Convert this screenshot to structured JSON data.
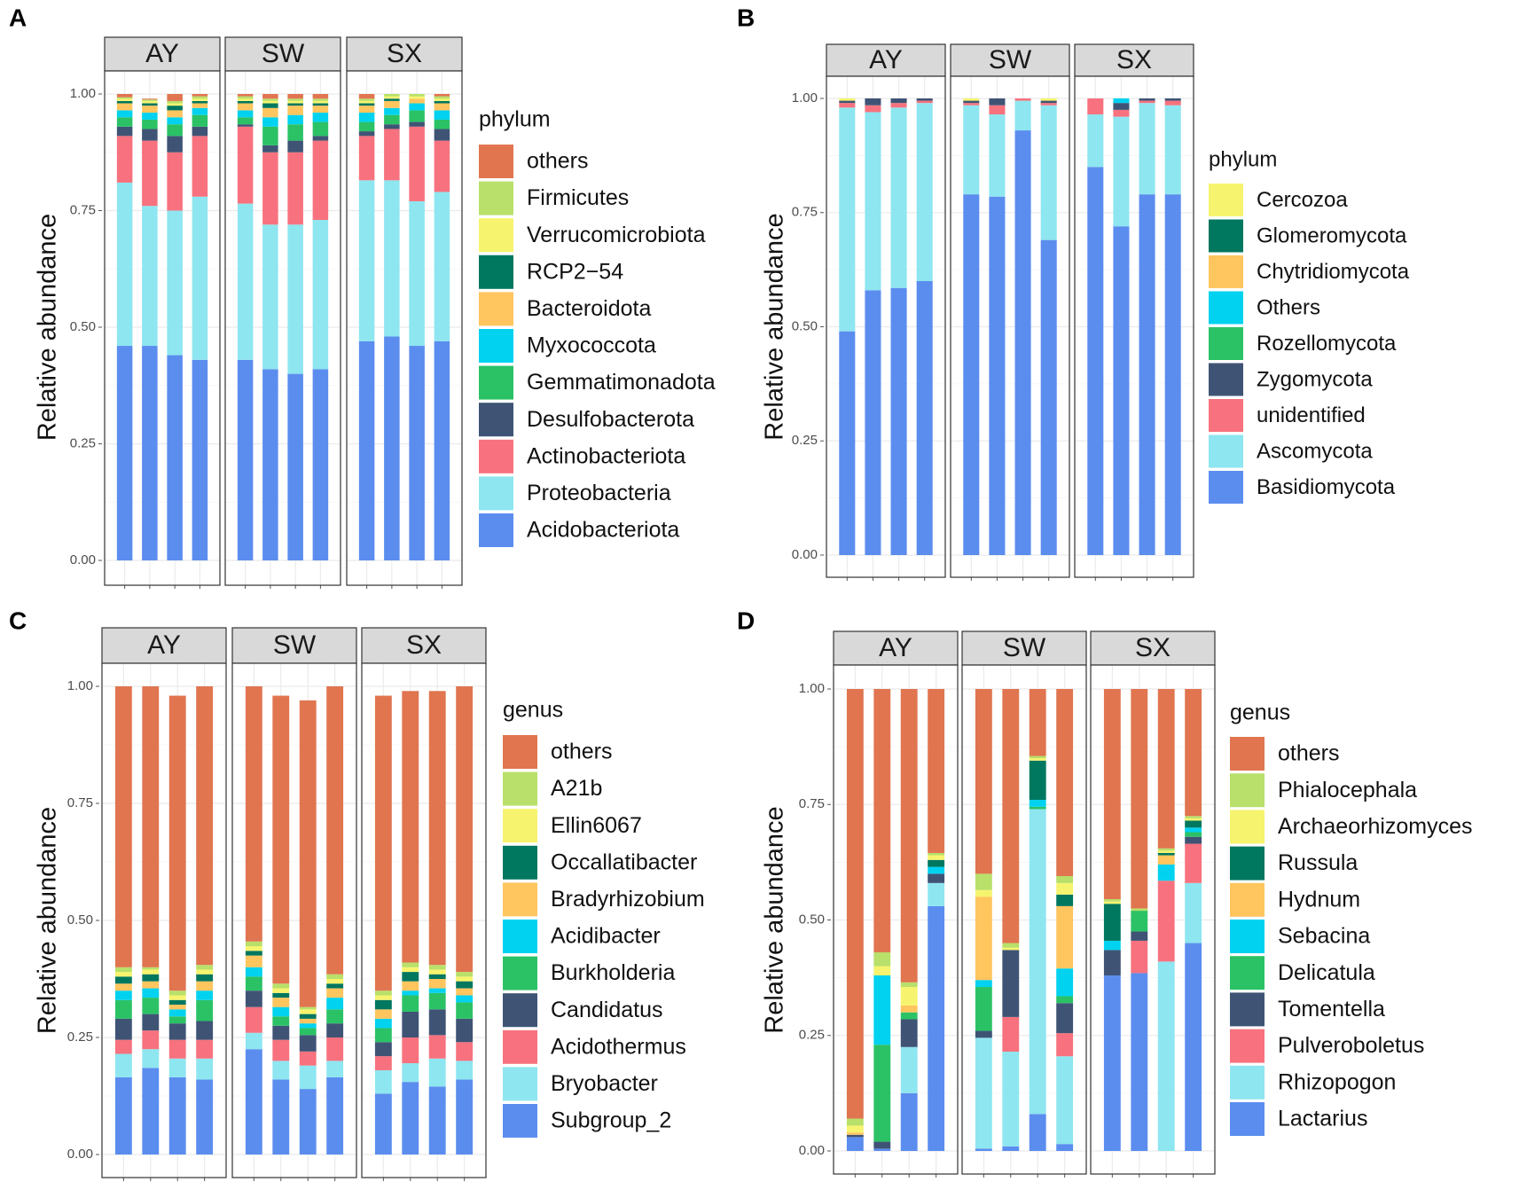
{
  "colors": {
    "others": "#E07550",
    "Firmicutes": "#B8E06A",
    "Verrucomicrobiota": "#F6F46E",
    "RCP2-54": "#00775F",
    "Bacteroidota": "#FFC55E",
    "Myxococcota": "#00D2F0",
    "Gemmatimonadota": "#2BC266",
    "Desulfobacterota": "#3F5475",
    "Actinobacteriota": "#F7727E",
    "Proteobacteria": "#8EE6F0",
    "Acidobacteriota": "#5B8DEF"
  },
  "chart_data": [
    {
      "panel": "A",
      "type": "bar",
      "stacked": true,
      "ylabel": "Relative abundance",
      "yticks": [
        "0.00",
        "0.25",
        "0.50",
        "0.75",
        "1.00"
      ],
      "ylim": [
        0,
        1
      ],
      "facets": [
        "AY",
        "SW",
        "SX"
      ],
      "legend_title": "phylum",
      "legend": [
        "others",
        "Firmicutes",
        "Verrucomicrobiota",
        "RCP2−54",
        "Bacteroidota",
        "Myxococcota",
        "Gemmatimonadota",
        "Desulfobacterota",
        "Actinobacteriota",
        "Proteobacteria",
        "Acidobacteriota"
      ],
      "legend_colors": [
        "#E07550",
        "#B8E06A",
        "#F6F46E",
        "#00775F",
        "#FFC55E",
        "#00D2F0",
        "#2BC266",
        "#3F5475",
        "#F7727E",
        "#8EE6F0",
        "#5B8DEF"
      ],
      "stack_order": [
        "Acidobacteriota",
        "Proteobacteria",
        "Actinobacteriota",
        "Desulfobacterota",
        "Gemmatimonadota",
        "Myxococcota",
        "Bacteroidota",
        "RCP2−54",
        "Verrucomicrobiota",
        "Firmicutes",
        "others"
      ],
      "stack_colors": [
        "#5B8DEF",
        "#8EE6F0",
        "#F7727E",
        "#3F5475",
        "#2BC266",
        "#00D2F0",
        "#FFC55E",
        "#00775F",
        "#F6F46E",
        "#B8E06A",
        "#E07550"
      ],
      "bars": [
        [
          [
            0.46,
            0.35,
            0.1,
            0.02,
            0.02,
            0.015,
            0.015,
            0.005,
            0.005,
            0.003,
            0.007
          ],
          [
            0.46,
            0.3,
            0.14,
            0.025,
            0.02,
            0.015,
            0.015,
            0.005,
            0.005,
            0.003,
            0.002
          ],
          [
            0.44,
            0.31,
            0.125,
            0.035,
            0.025,
            0.015,
            0.015,
            0.01,
            0.005,
            0.005,
            0.015
          ],
          [
            0.43,
            0.35,
            0.13,
            0.02,
            0.025,
            0.015,
            0.01,
            0.005,
            0.005,
            0.005,
            0.005
          ]
        ],
        [
          [
            0.43,
            0.335,
            0.165,
            0.005,
            0.015,
            0.015,
            0.015,
            0.005,
            0.005,
            0.005,
            0.005
          ],
          [
            0.41,
            0.31,
            0.155,
            0.015,
            0.04,
            0.02,
            0.02,
            0.01,
            0.005,
            0.005,
            0.01
          ],
          [
            0.4,
            0.32,
            0.155,
            0.025,
            0.035,
            0.02,
            0.02,
            0.005,
            0.005,
            0.005,
            0.01
          ],
          [
            0.41,
            0.32,
            0.17,
            0.01,
            0.03,
            0.02,
            0.015,
            0.005,
            0.005,
            0.005,
            0.01
          ]
        ],
        [
          [
            0.47,
            0.345,
            0.095,
            0.01,
            0.02,
            0.02,
            0.015,
            0.005,
            0.005,
            0.005,
            0.01
          ],
          [
            0.48,
            0.335,
            0.11,
            0.01,
            0.02,
            0.015,
            0.015,
            0.005,
            0.005,
            0.005,
            0.0
          ],
          [
            0.46,
            0.31,
            0.16,
            0.01,
            0.025,
            0.015,
            0.01,
            0.0,
            0.005,
            0.005,
            0.0
          ],
          [
            0.47,
            0.32,
            0.11,
            0.025,
            0.02,
            0.02,
            0.015,
            0.005,
            0.005,
            0.005,
            0.005
          ]
        ]
      ]
    },
    {
      "panel": "B",
      "type": "bar",
      "stacked": true,
      "ylabel": "Relative abundance",
      "yticks": [
        "0.00",
        "0.25",
        "0.50",
        "0.75",
        "1.00"
      ],
      "ylim": [
        0,
        1
      ],
      "facets": [
        "AY",
        "SW",
        "SX"
      ],
      "legend_title": "phylum",
      "legend": [
        "Cercozoa",
        "Glomeromycota",
        "Chytridiomycota",
        "Others",
        "Rozellomycota",
        "Zygomycota",
        "unidentified",
        "Ascomycota",
        "Basidiomycota"
      ],
      "legend_colors": [
        "#F6F46E",
        "#00775F",
        "#FFC55E",
        "#00D2F0",
        "#2BC266",
        "#3F5475",
        "#F7727E",
        "#8EE6F0",
        "#5B8DEF"
      ],
      "stack_order": [
        "Basidiomycota",
        "Ascomycota",
        "unidentified",
        "Zygomycota",
        "Rozellomycota",
        "Others",
        "Chytridiomycota",
        "Glomeromycota",
        "Cercozoa"
      ],
      "stack_colors": [
        "#5B8DEF",
        "#8EE6F0",
        "#F7727E",
        "#3F5475",
        "#2BC266",
        "#00D2F0",
        "#FFC55E",
        "#00775F",
        "#F6F46E"
      ],
      "bars": [
        [
          [
            0.49,
            0.49,
            0.01,
            0.005,
            0,
            0,
            0,
            0,
            0.005
          ],
          [
            0.58,
            0.39,
            0.015,
            0.015,
            0,
            0,
            0,
            0,
            0
          ],
          [
            0.585,
            0.395,
            0.01,
            0.01,
            0,
            0,
            0,
            0,
            0
          ],
          [
            0.6,
            0.39,
            0.005,
            0.005,
            0,
            0,
            0,
            0,
            0
          ]
        ],
        [
          [
            0.79,
            0.195,
            0.005,
            0.005,
            0,
            0,
            0,
            0,
            0.005
          ],
          [
            0.785,
            0.18,
            0.02,
            0.015,
            0,
            0,
            0,
            0,
            0
          ],
          [
            0.93,
            0.065,
            0.005,
            0.0,
            0,
            0,
            0,
            0,
            0
          ],
          [
            0.69,
            0.295,
            0.005,
            0.005,
            0,
            0,
            0,
            0,
            0.005
          ]
        ],
        [
          [
            0.85,
            0.115,
            0.035,
            0.0,
            0,
            0,
            0,
            0,
            0
          ],
          [
            0.72,
            0.24,
            0.015,
            0.015,
            0,
            0.01,
            0,
            0,
            0
          ],
          [
            0.79,
            0.2,
            0.005,
            0.005,
            0,
            0,
            0,
            0,
            0
          ],
          [
            0.79,
            0.195,
            0.01,
            0.005,
            0,
            0,
            0,
            0,
            0
          ]
        ]
      ]
    },
    {
      "panel": "C",
      "type": "bar",
      "stacked": true,
      "ylabel": "Relative abundance",
      "yticks": [
        "0.00",
        "0.25",
        "0.50",
        "0.75",
        "1.00"
      ],
      "ylim": [
        0,
        1
      ],
      "facets": [
        "AY",
        "SW",
        "SX"
      ],
      "legend_title": "genus",
      "legend": [
        "others",
        "A21b",
        "Ellin6067",
        "Occallatibacter",
        "Bradyrhizobium",
        "Acidibacter",
        "Burkholderia",
        "Candidatus",
        "Acidothermus",
        "Bryobacter",
        "Subgroup_2"
      ],
      "legend_colors": [
        "#E07550",
        "#B8E06A",
        "#F6F46E",
        "#00775F",
        "#FFC55E",
        "#00D2F0",
        "#2BC266",
        "#3F5475",
        "#F7727E",
        "#8EE6F0",
        "#5B8DEF"
      ],
      "stack_order": [
        "Subgroup_2",
        "Bryobacter",
        "Acidothermus",
        "Candidatus",
        "Burkholderia",
        "Acidibacter",
        "Bradyrhizobium",
        "Occallatibacter",
        "Ellin6067",
        "A21b",
        "others"
      ],
      "stack_colors": [
        "#5B8DEF",
        "#8EE6F0",
        "#F7727E",
        "#3F5475",
        "#2BC266",
        "#00D2F0",
        "#FFC55E",
        "#00775F",
        "#F6F46E",
        "#B8E06A",
        "#E07550"
      ],
      "bars": [
        [
          [
            0.165,
            0.05,
            0.03,
            0.045,
            0.04,
            0.02,
            0.015,
            0.015,
            0.01,
            0.01,
            0.6
          ],
          [
            0.185,
            0.04,
            0.04,
            0.035,
            0.035,
            0.02,
            0.015,
            0.015,
            0.01,
            0.005,
            0.6
          ],
          [
            0.165,
            0.04,
            0.04,
            0.035,
            0.015,
            0.015,
            0.01,
            0.01,
            0.01,
            0.01,
            0.63
          ],
          [
            0.16,
            0.045,
            0.04,
            0.04,
            0.045,
            0.02,
            0.02,
            0.015,
            0.01,
            0.01,
            0.595
          ]
        ],
        [
          [
            0.225,
            0.035,
            0.055,
            0.035,
            0.03,
            0.02,
            0.025,
            0.01,
            0.01,
            0.01,
            0.545
          ],
          [
            0.16,
            0.04,
            0.045,
            0.03,
            0.02,
            0.02,
            0.02,
            0.01,
            0.01,
            0.01,
            0.615
          ],
          [
            0.14,
            0.05,
            0.03,
            0.035,
            0.015,
            0.01,
            0.01,
            0.01,
            0.01,
            0.005,
            0.655
          ],
          [
            0.165,
            0.035,
            0.05,
            0.03,
            0.03,
            0.025,
            0.02,
            0.01,
            0.01,
            0.01,
            0.615
          ]
        ],
        [
          [
            0.13,
            0.05,
            0.03,
            0.03,
            0.03,
            0.02,
            0.02,
            0.02,
            0.01,
            0.01,
            0.63
          ],
          [
            0.155,
            0.04,
            0.055,
            0.055,
            0.035,
            0.01,
            0.02,
            0.02,
            0.01,
            0.01,
            0.58
          ],
          [
            0.145,
            0.06,
            0.05,
            0.055,
            0.035,
            0.01,
            0.02,
            0.01,
            0.01,
            0.01,
            0.585
          ],
          [
            0.16,
            0.04,
            0.04,
            0.05,
            0.035,
            0.015,
            0.015,
            0.015,
            0.01,
            0.01,
            0.61
          ]
        ]
      ]
    },
    {
      "panel": "D",
      "type": "bar",
      "stacked": true,
      "ylabel": "Relative abundance",
      "yticks": [
        "0.00",
        "0.25",
        "0.50",
        "0.75",
        "1.00"
      ],
      "ylim": [
        0,
        1
      ],
      "facets": [
        "AY",
        "SW",
        "SX"
      ],
      "legend_title": "genus",
      "legend": [
        "others",
        "Phialocephala",
        "Archaeorhizomyces",
        "Russula",
        "Hydnum",
        "Sebacina",
        "Delicatula",
        "Tomentella",
        "Pulveroboletus",
        "Rhizopogon",
        "Lactarius"
      ],
      "legend_colors": [
        "#E07550",
        "#B8E06A",
        "#F6F46E",
        "#00775F",
        "#FFC55E",
        "#00D2F0",
        "#2BC266",
        "#3F5475",
        "#F7727E",
        "#8EE6F0",
        "#5B8DEF"
      ],
      "stack_order": [
        "Lactarius",
        "Rhizopogon",
        "Pulveroboletus",
        "Tomentella",
        "Delicatula",
        "Sebacina",
        "Hydnum",
        "Russula",
        "Archaeorhizomyces",
        "Phialocephala",
        "others"
      ],
      "stack_colors": [
        "#5B8DEF",
        "#8EE6F0",
        "#F7727E",
        "#3F5475",
        "#2BC266",
        "#00D2F0",
        "#FFC55E",
        "#00775F",
        "#F6F46E",
        "#B8E06A",
        "#E07550"
      ],
      "bars": [
        [
          [
            0.03,
            0.0,
            0.0,
            0.005,
            0.0,
            0.0,
            0.005,
            0.0,
            0.015,
            0.015,
            0.93
          ],
          [
            0.005,
            0.0,
            0.0,
            0.015,
            0.21,
            0.15,
            0.0,
            0.0,
            0.02,
            0.03,
            0.57
          ],
          [
            0.125,
            0.1,
            0.0,
            0.06,
            0.015,
            0.0,
            0.015,
            0.0,
            0.04,
            0.01,
            0.635
          ],
          [
            0.53,
            0.05,
            0.0,
            0.02,
            0.0,
            0.015,
            0.0,
            0.015,
            0.01,
            0.005,
            0.355
          ]
        ],
        [
          [
            0.005,
            0.24,
            0.0,
            0.015,
            0.095,
            0.015,
            0.18,
            0.0,
            0.015,
            0.035,
            0.4
          ],
          [
            0.01,
            0.205,
            0.075,
            0.145,
            0.0,
            0.0,
            0.0,
            0.0,
            0.005,
            0.01,
            0.55
          ],
          [
            0.08,
            0.66,
            0.0,
            0.0,
            0.005,
            0.015,
            0.0,
            0.085,
            0.005,
            0.005,
            0.145
          ],
          [
            0.015,
            0.19,
            0.05,
            0.065,
            0.015,
            0.06,
            0.135,
            0.025,
            0.025,
            0.015,
            0.405
          ]
        ],
        [
          [
            0.38,
            0.0,
            0.0,
            0.055,
            0.0,
            0.02,
            0.0,
            0.08,
            0.005,
            0.005,
            0.455
          ],
          [
            0.385,
            0.0,
            0.07,
            0.02,
            0.045,
            0.0,
            0.0,
            0.0,
            0.0,
            0.005,
            0.475
          ],
          [
            0.0,
            0.41,
            0.175,
            0.0,
            0.0,
            0.035,
            0.02,
            0.005,
            0.005,
            0.005,
            0.345
          ],
          [
            0.45,
            0.13,
            0.085,
            0.015,
            0.01,
            0.01,
            0.0,
            0.015,
            0.005,
            0.005,
            0.275
          ]
        ]
      ]
    }
  ]
}
